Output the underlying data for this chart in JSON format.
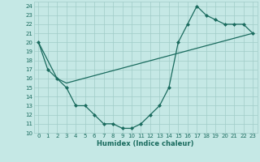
{
  "xlabel": "Humidex (Indice chaleur)",
  "ylabel": "",
  "xlim": [
    -0.5,
    23.5
  ],
  "ylim": [
    10,
    24.5
  ],
  "yticks": [
    10,
    11,
    12,
    13,
    14,
    15,
    16,
    17,
    18,
    19,
    20,
    21,
    22,
    23,
    24
  ],
  "xticks": [
    0,
    1,
    2,
    3,
    4,
    5,
    6,
    7,
    8,
    9,
    10,
    11,
    12,
    13,
    14,
    15,
    16,
    17,
    18,
    19,
    20,
    21,
    22,
    23
  ],
  "bg_color": "#c5e8e5",
  "grid_color": "#a0ccc8",
  "line_color": "#1a6b5e",
  "line1_x": [
    0,
    1,
    2,
    3,
    4,
    5,
    6,
    7,
    8,
    9,
    10,
    11,
    12,
    13,
    14,
    15,
    16,
    17,
    18,
    19,
    20,
    21,
    22,
    23
  ],
  "line1_y": [
    20,
    17,
    16,
    15,
    13,
    13,
    12,
    11,
    11,
    10.5,
    10.5,
    11,
    12,
    13,
    15,
    20,
    22,
    24,
    23,
    22.5,
    22,
    22,
    22,
    21
  ],
  "line2_x": [
    0,
    2,
    3,
    23
  ],
  "line2_y": [
    20,
    16,
    15.5,
    21
  ],
  "marker": "D",
  "markersize": 2.0,
  "linewidth": 0.9
}
